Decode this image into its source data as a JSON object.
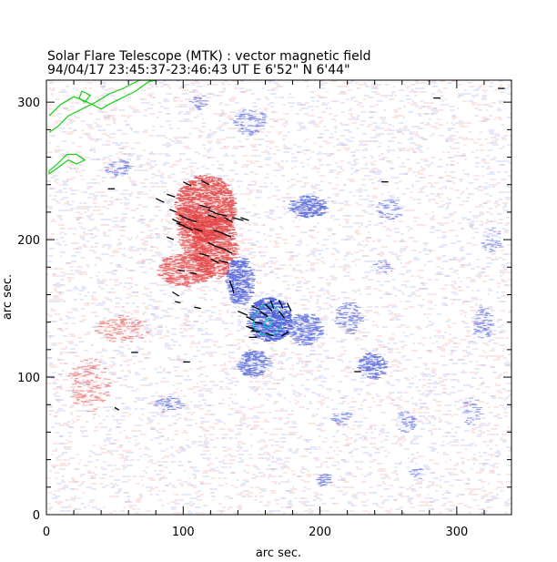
{
  "header": {
    "title": "Solar Flare Telescope (MTK) : vector magnetic field",
    "subtitle": "94/04/17  23:45:37-23:46:43 UT     E 6'52\"  N 6'44\""
  },
  "chart_data": {
    "type": "heatmap",
    "title": "Solar Flare Telescope (MTK) : vector magnetic field",
    "subtitle": "94/04/17  23:45:37-23:46:43 UT     E 6'52\"  N 6'44\"",
    "xlabel": "arc sec.",
    "ylabel": "arc sec.",
    "xlim": [
      0,
      340
    ],
    "ylim": [
      0,
      316
    ],
    "x_ticks": [
      0,
      100,
      200,
      300
    ],
    "y_ticks": [
      0,
      100,
      200,
      300
    ],
    "grid": false,
    "colors": {
      "positive_polarity": "#e23a3a",
      "negative_polarity": "#3a4fd6",
      "contour_outer": "#18d018",
      "contour_umbra": "#15c0c0",
      "vectors": "#000000"
    },
    "regions": [
      {
        "name": "positive",
        "x": 115,
        "y": 223,
        "rx": 22,
        "ry": 24,
        "strength": 0.9
      },
      {
        "name": "positive",
        "x": 122,
        "y": 195,
        "rx": 16,
        "ry": 24,
        "strength": 0.8
      },
      {
        "name": "positive",
        "x": 100,
        "y": 178,
        "rx": 20,
        "ry": 12,
        "strength": 0.7
      },
      {
        "name": "positive",
        "x": 105,
        "y": 205,
        "rx": 10,
        "ry": 20,
        "strength": 0.6
      },
      {
        "name": "positive",
        "x": 55,
        "y": 135,
        "rx": 20,
        "ry": 10,
        "strength": 0.25
      },
      {
        "name": "positive",
        "x": 30,
        "y": 95,
        "rx": 15,
        "ry": 20,
        "strength": 0.2
      },
      {
        "name": "negative",
        "x": 162,
        "y": 142,
        "rx": 16,
        "ry": 16,
        "strength": 1.0
      },
      {
        "name": "negative",
        "x": 140,
        "y": 170,
        "rx": 10,
        "ry": 18,
        "strength": 0.75
      },
      {
        "name": "negative",
        "x": 150,
        "y": 110,
        "rx": 12,
        "ry": 10,
        "strength": 0.6
      },
      {
        "name": "negative",
        "x": 188,
        "y": 135,
        "rx": 12,
        "ry": 12,
        "strength": 0.6
      },
      {
        "name": "negative",
        "x": 190,
        "y": 224,
        "rx": 14,
        "ry": 8,
        "strength": 0.7
      },
      {
        "name": "negative",
        "x": 237,
        "y": 108,
        "rx": 10,
        "ry": 10,
        "strength": 0.6
      },
      {
        "name": "negative",
        "x": 220,
        "y": 143,
        "rx": 10,
        "ry": 12,
        "strength": 0.35
      },
      {
        "name": "negative",
        "x": 88,
        "y": 80,
        "rx": 10,
        "ry": 6,
        "strength": 0.35
      },
      {
        "name": "negative",
        "x": 215,
        "y": 70,
        "rx": 8,
        "ry": 5,
        "strength": 0.3
      },
      {
        "name": "negative",
        "x": 262,
        "y": 68,
        "rx": 8,
        "ry": 8,
        "strength": 0.3
      },
      {
        "name": "negative",
        "x": 250,
        "y": 222,
        "rx": 10,
        "ry": 8,
        "strength": 0.25
      },
      {
        "name": "negative",
        "x": 318,
        "y": 140,
        "rx": 8,
        "ry": 12,
        "strength": 0.3
      },
      {
        "name": "negative",
        "x": 325,
        "y": 200,
        "rx": 8,
        "ry": 10,
        "strength": 0.2
      },
      {
        "name": "negative",
        "x": 245,
        "y": 180,
        "rx": 8,
        "ry": 6,
        "strength": 0.2
      },
      {
        "name": "negative",
        "x": 202,
        "y": 25,
        "rx": 6,
        "ry": 5,
        "strength": 0.45
      },
      {
        "name": "negative",
        "x": 270,
        "y": 30,
        "rx": 6,
        "ry": 4,
        "strength": 0.3
      },
      {
        "name": "negative",
        "x": 52,
        "y": 252,
        "rx": 10,
        "ry": 6,
        "strength": 0.35
      },
      {
        "name": "negative",
        "x": 148,
        "y": 285,
        "rx": 12,
        "ry": 10,
        "strength": 0.3
      },
      {
        "name": "negative",
        "x": 110,
        "y": 300,
        "rx": 8,
        "ry": 6,
        "strength": 0.25
      },
      {
        "name": "negative",
        "x": 310,
        "y": 75,
        "rx": 8,
        "ry": 10,
        "strength": 0.2
      }
    ],
    "contours": [
      {
        "level": "outer",
        "color": "#18d018",
        "points": [
          [
            2,
            290
          ],
          [
            10,
            298
          ],
          [
            20,
            304
          ],
          [
            30,
            300
          ],
          [
            40,
            295
          ],
          [
            45,
            298
          ],
          [
            55,
            303
          ],
          [
            65,
            308
          ],
          [
            75,
            315
          ],
          [
            80,
            316
          ],
          [
            68,
            316
          ],
          [
            56,
            310
          ],
          [
            46,
            306
          ],
          [
            36,
            300
          ],
          [
            26,
            295
          ],
          [
            16,
            290
          ],
          [
            8,
            282
          ],
          [
            2,
            278
          ]
        ]
      },
      {
        "level": "outer",
        "color": "#18d018",
        "points": [
          [
            2,
            250
          ],
          [
            8,
            255
          ],
          [
            15,
            262
          ],
          [
            22,
            262
          ],
          [
            28,
            258
          ],
          [
            22,
            255
          ],
          [
            16,
            258
          ],
          [
            8,
            252
          ],
          [
            2,
            248
          ]
        ]
      },
      {
        "level": "outer",
        "color": "#18d018",
        "points": [
          [
            28,
            300
          ],
          [
            32,
            305
          ],
          [
            26,
            308
          ],
          [
            24,
            303
          ]
        ]
      },
      {
        "level": "outer",
        "color": "#15c0c0",
        "points": [
          [
            152,
            145
          ],
          [
            158,
            152
          ],
          [
            166,
            152
          ],
          [
            172,
            146
          ],
          [
            172,
            137
          ],
          [
            166,
            131
          ],
          [
            157,
            131
          ],
          [
            151,
            137
          ]
        ]
      },
      {
        "level": "umbra",
        "color": "#15c0c0",
        "points": [
          [
            160,
            140
          ],
          [
            162,
            143
          ],
          [
            165,
            142
          ],
          [
            165,
            138
          ],
          [
            162,
            136
          ],
          [
            159,
            137
          ]
        ]
      }
    ],
    "vectors": [
      [
        112,
        225,
        8,
        -2
      ],
      [
        118,
        222,
        6,
        -3
      ],
      [
        124,
        219,
        8,
        -2
      ],
      [
        130,
        216,
        6,
        -3
      ],
      [
        136,
        216,
        8,
        -2
      ],
      [
        142,
        216,
        6,
        -2
      ],
      [
        97,
        218,
        6,
        -3
      ],
      [
        103,
        215,
        7,
        -2
      ],
      [
        95,
        212,
        6,
        -2
      ],
      [
        100,
        210,
        7,
        -3
      ],
      [
        108,
        208,
        6,
        -2
      ],
      [
        122,
        207,
        6,
        -2
      ],
      [
        128,
        205,
        7,
        -3
      ],
      [
        118,
        198,
        6,
        -3
      ],
      [
        124,
        195,
        7,
        -2
      ],
      [
        130,
        193,
        6,
        -3
      ],
      [
        112,
        190,
        7,
        -2
      ],
      [
        120,
        186,
        6,
        -3
      ],
      [
        126,
        185,
        7,
        -2
      ],
      [
        88,
        202,
        5,
        -2
      ],
      [
        92,
        215,
        6,
        -3
      ],
      [
        90,
        222,
        5,
        -2
      ],
      [
        88,
        233,
        6,
        -2
      ],
      [
        100,
        242,
        6,
        -3
      ],
      [
        118,
        218,
        6,
        -2
      ],
      [
        96,
        178,
        5,
        -1
      ],
      [
        105,
        176,
        5,
        -1
      ],
      [
        92,
        162,
        5,
        -3
      ],
      [
        94,
        155,
        4,
        -1
      ],
      [
        108,
        151,
        5,
        -1
      ],
      [
        134,
        170,
        2,
        -5
      ],
      [
        140,
        148,
        7,
        -3
      ],
      [
        146,
        144,
        6,
        -3
      ],
      [
        152,
        140,
        6,
        -1
      ],
      [
        146,
        137,
        6,
        -2
      ],
      [
        150,
        134,
        6,
        -1
      ],
      [
        148,
        129,
        6,
        0
      ],
      [
        156,
        148,
        6,
        -4
      ],
      [
        160,
        153,
        5,
        -5
      ],
      [
        164,
        156,
        2,
        -6
      ],
      [
        170,
        156,
        3,
        -6
      ],
      [
        176,
        154,
        3,
        -6
      ],
      [
        170,
        148,
        4,
        -5
      ],
      [
        150,
        152,
        6,
        -3
      ],
      [
        172,
        130,
        5,
        3
      ],
      [
        160,
        132,
        6,
        -2
      ],
      [
        62,
        118,
        5,
        0
      ],
      [
        100,
        111,
        5,
        0
      ],
      [
        225,
        104,
        5,
        0
      ],
      [
        45,
        237,
        5,
        0
      ],
      [
        113,
        243,
        6,
        -3
      ],
      [
        80,
        230,
        6,
        -3
      ],
      [
        50,
        78,
        3,
        -2
      ],
      [
        245,
        242,
        5,
        0
      ],
      [
        283,
        303,
        5,
        0
      ],
      [
        330,
        310,
        5,
        0
      ],
      [
        136,
        165,
        1,
        -4
      ]
    ]
  }
}
